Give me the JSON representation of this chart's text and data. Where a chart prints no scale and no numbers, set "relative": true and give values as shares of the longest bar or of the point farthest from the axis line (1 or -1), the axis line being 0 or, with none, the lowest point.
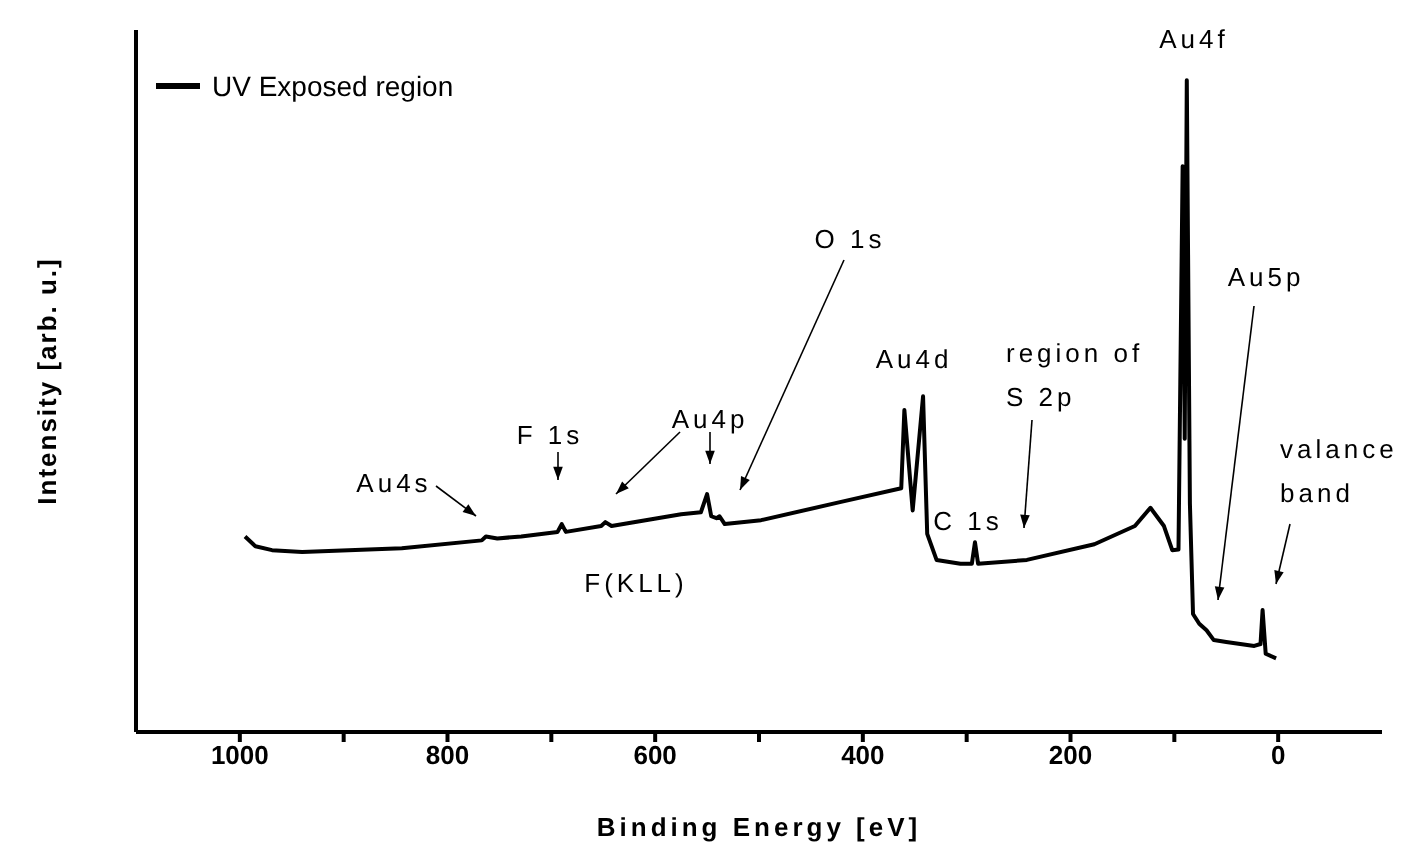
{
  "chart_data": {
    "type": "line",
    "relative": true,
    "xlabel": "Binding Energy [eV]",
    "ylabel": "Intensity [arb. u.]",
    "xlim": [
      1100,
      -100
    ],
    "xticks": [
      {
        "value": 1000,
        "label": "1000"
      },
      {
        "value": 900,
        "label": null
      },
      {
        "value": 800,
        "label": "800"
      },
      {
        "value": 700,
        "label": null
      },
      {
        "value": 600,
        "label": "600"
      },
      {
        "value": 500,
        "label": null
      },
      {
        "value": 400,
        "label": "400"
      },
      {
        "value": 300,
        "label": null
      },
      {
        "value": 200,
        "label": "200"
      },
      {
        "value": 100,
        "label": null
      },
      {
        "value": 0,
        "label": "0"
      }
    ],
    "x": [
      995,
      985,
      969,
      940,
      844,
      767,
      763,
      752,
      729,
      694,
      690,
      686,
      652,
      648,
      642,
      575,
      556,
      550,
      546,
      541,
      538,
      533,
      498,
      421,
      363,
      360,
      352,
      342,
      338,
      329,
      306,
      295,
      292,
      289,
      242,
      177,
      138,
      123,
      110,
      102,
      96,
      92,
      90,
      88,
      85,
      82,
      76,
      69,
      62,
      50,
      23,
      17,
      15,
      12,
      2
    ],
    "series": [
      {
        "name": "UV Exposed region",
        "color": "#000000",
        "values": [
          0.3,
          0.285,
          0.279,
          0.276,
          0.282,
          0.294,
          0.3,
          0.297,
          0.3,
          0.307,
          0.319,
          0.307,
          0.316,
          0.322,
          0.316,
          0.334,
          0.337,
          0.365,
          0.331,
          0.328,
          0.331,
          0.319,
          0.325,
          0.353,
          0.374,
          0.494,
          0.34,
          0.515,
          0.304,
          0.264,
          0.258,
          0.258,
          0.291,
          0.258,
          0.264,
          0.288,
          0.316,
          0.344,
          0.316,
          0.279,
          0.28,
          0.868,
          0.45,
          1.0,
          0.35,
          0.181,
          0.166,
          0.156,
          0.141,
          0.138,
          0.132,
          0.135,
          0.187,
          0.12,
          0.113
        ]
      }
    ],
    "annotations": [
      "Au4s",
      "F 1s",
      "Au4p",
      "O 1s",
      "Au4d",
      "F(KLL)",
      "C 1s",
      "region of\nS 2p",
      "Au5p",
      "valance\nband",
      "Au4f"
    ],
    "legend": "top left",
    "marker": "none",
    "line_style": "solid",
    "grid": false
  }
}
